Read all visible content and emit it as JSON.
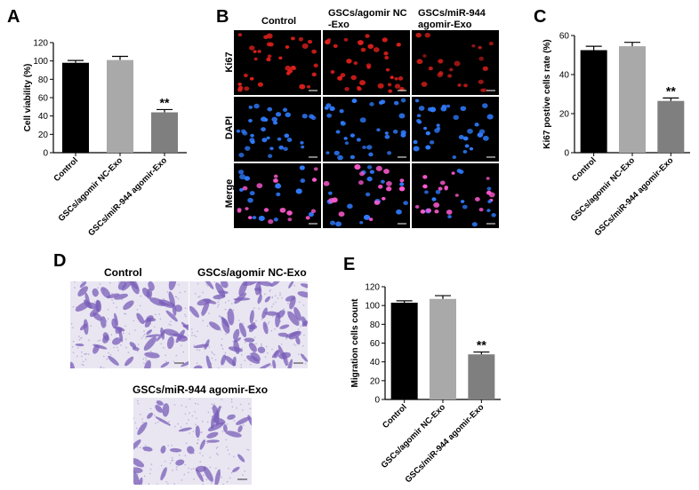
{
  "panels": {
    "a": "A",
    "b": "B",
    "c": "C",
    "d": "D",
    "e": "E"
  },
  "panel_b": {
    "columns": [
      "Control",
      "GSCs/agomir NC -Exo",
      "GSCs/miR-944 agomir-Exo"
    ],
    "column_lines": [
      [
        "Control"
      ],
      [
        "GSCs/agomir NC",
        "-Exo"
      ],
      [
        "GSCs/miR-944",
        "agomir-Exo"
      ]
    ],
    "rows": [
      "Ki67",
      "DAPI",
      "Merge"
    ],
    "colors": {
      "Ki67": "#e0201c",
      "DAPI": "#2f7bff",
      "Merge": "#ff5ad0"
    }
  },
  "panel_d": {
    "labels": [
      "Control",
      "GSCs/agomir NC-Exo",
      "GSCs/miR-944 agomir-Exo"
    ],
    "stain_color": "#7a5fb8"
  },
  "chart_data": [
    {
      "panel": "A",
      "type": "bar",
      "categories": [
        "Control",
        "GSCs/agomir NC-Exo",
        "GSCs/miR-944 agomir-Exo"
      ],
      "values": [
        98,
        101,
        44
      ],
      "errors": [
        2.5,
        4,
        3
      ],
      "colors": [
        "#000000",
        "#a9a9a9",
        "#7f7f7f"
      ],
      "ylabel": "Cell viability (%)",
      "ylim": [
        0,
        120
      ],
      "yticks": [
        0,
        20,
        40,
        60,
        80,
        100,
        120
      ],
      "significance": [
        "",
        "",
        "**"
      ]
    },
    {
      "panel": "C",
      "type": "bar",
      "categories": [
        "Control",
        "GSCs/agomir NC-Exo",
        "GSCs/miR-944 agomir-Exo"
      ],
      "values": [
        52.5,
        54.5,
        26.5
      ],
      "errors": [
        2,
        2,
        1.5
      ],
      "colors": [
        "#000000",
        "#a9a9a9",
        "#7f7f7f"
      ],
      "ylabel": "Ki67 postive cells rate (%)",
      "ylim": [
        0,
        60
      ],
      "yticks": [
        0,
        20,
        40,
        60
      ],
      "significance": [
        "",
        "",
        "**"
      ]
    },
    {
      "panel": "E",
      "type": "bar",
      "categories": [
        "Control",
        "GSCs/agomir NC-Exo",
        "GSCs/miR-944 agomir-Exo"
      ],
      "values": [
        103,
        107,
        48
      ],
      "errors": [
        2,
        3.5,
        2.5
      ],
      "colors": [
        "#000000",
        "#a9a9a9",
        "#7f7f7f"
      ],
      "ylabel": "Migration cells count",
      "ylim": [
        0,
        120
      ],
      "yticks": [
        0,
        20,
        40,
        60,
        80,
        100,
        120
      ],
      "significance": [
        "",
        "",
        "**"
      ]
    }
  ]
}
